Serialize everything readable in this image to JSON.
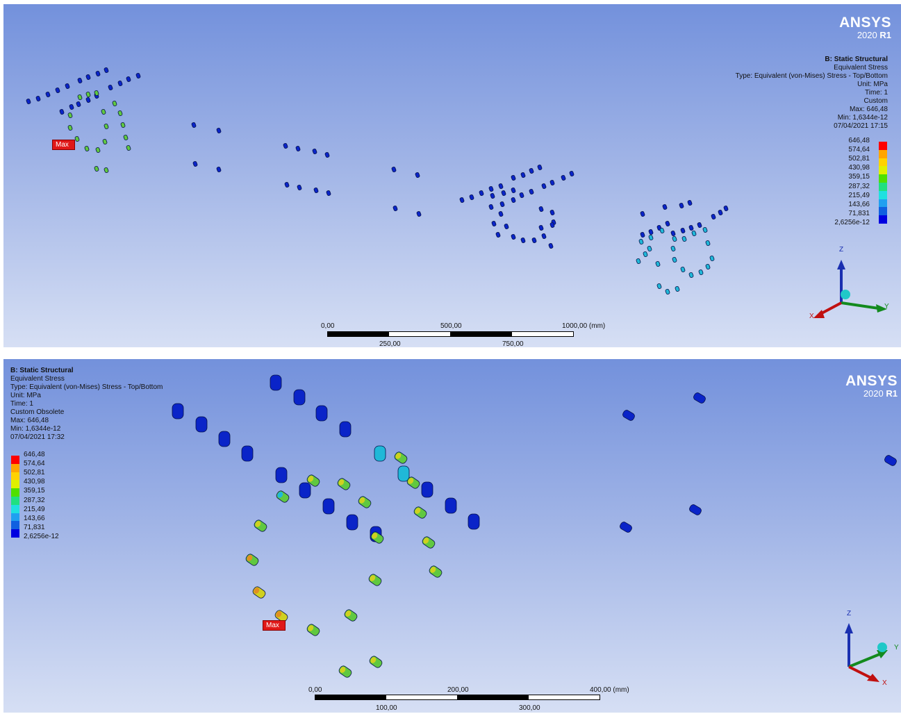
{
  "colors": {
    "legend": [
      "#ff0000",
      "#ffa500",
      "#ffd200",
      "#e0f000",
      "#50e000",
      "#20e080",
      "#20e0e0",
      "#20a0f0",
      "#1060e0",
      "#0000e0"
    ],
    "viewport_top": "#7391dc",
    "viewport_bottom": "#d6dff4",
    "max_tag": "#e01818"
  },
  "viewports": [
    {
      "logo": {
        "brand": "ANSYS",
        "version": "2020",
        "release": "R1"
      },
      "info": {
        "title": "B: Static Structural",
        "result": "Equivalent Stress",
        "type": "Type: Equivalent (von-Mises) Stress - Top/Bottom",
        "unit": "Unit: MPa",
        "time": "Time: 1",
        "status": "Custom",
        "max": "Max: 646,48",
        "min": "Min: 1,6344e-12",
        "date": "07/04/2021 17:15"
      },
      "legend": [
        "646,48",
        "574,64",
        "502,81",
        "430,98",
        "359,15",
        "287,32",
        "215,49",
        "143,66",
        "71,831",
        "2,6256e-12"
      ],
      "scale": {
        "top": [
          "0,00",
          "500,00",
          "1000,00 (mm)"
        ],
        "bottom": [
          "250,00",
          "750,00"
        ]
      },
      "max_label": "Max",
      "axes": {
        "z": "Z",
        "x": "X",
        "y": "Y"
      },
      "icons": {
        "triad": "coordinate-triad-icon",
        "probe": "max-probe-icon"
      }
    },
    {
      "logo": {
        "brand": "ANSYS",
        "version": "2020",
        "release": "R1"
      },
      "info": {
        "title": "B: Static Structural",
        "result": "Equivalent Stress",
        "type": "Type: Equivalent (von-Mises) Stress - Top/Bottom",
        "unit": "Unit: MPa",
        "time": "Time: 1",
        "status": "Custom Obsolete",
        "max": "Max: 646,48",
        "min": "Min: 1,6344e-12",
        "date": "07/04/2021 17:32"
      },
      "legend": [
        "646,48",
        "574,64",
        "502,81",
        "430,98",
        "359,15",
        "287,32",
        "215,49",
        "143,66",
        "71,831",
        "2,6256e-12"
      ],
      "scale": {
        "top": [
          "0,00",
          "200,00",
          "400,00 (mm)"
        ],
        "bottom": [
          "100,00",
          "300,00"
        ]
      },
      "max_label": "Max",
      "axes": {
        "z": "Z",
        "x": "X",
        "y": "Y"
      },
      "icons": {
        "triad": "coordinate-triad-icon",
        "probe": "max-probe-icon"
      }
    }
  ]
}
